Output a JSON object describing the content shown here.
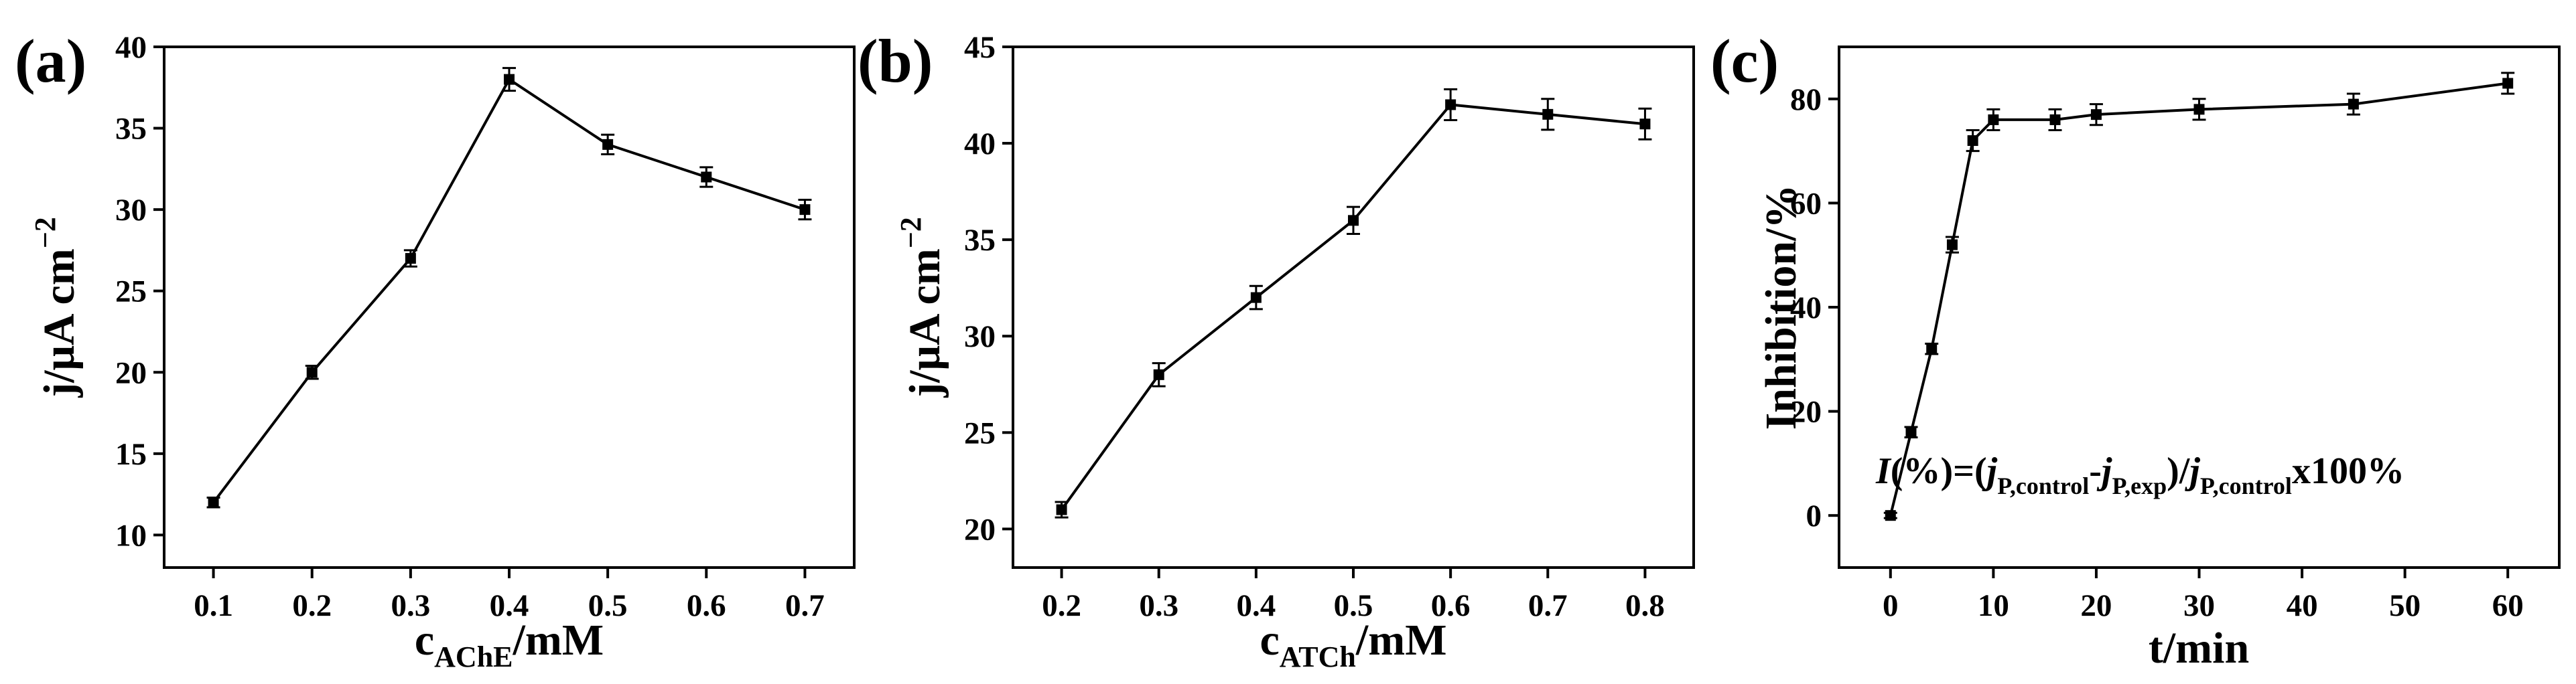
{
  "chart_data": [
    {
      "type": "line",
      "panel_label": "(a)",
      "xlabel_main": "c",
      "xlabel_sub": "AChE",
      "xlabel_tail": "/mM",
      "ylabel": "j/μA cm",
      "ylabel_sup": "−2",
      "xlim": [
        0.05,
        0.75
      ],
      "ylim": [
        8,
        40
      ],
      "xticks": [
        0.1,
        0.2,
        0.3,
        0.4,
        0.5,
        0.6,
        0.7
      ],
      "xtick_labels": [
        "0.1",
        "0.2",
        "0.3",
        "0.4",
        "0.5",
        "0.6",
        "0.7"
      ],
      "yticks": [
        10,
        15,
        20,
        25,
        30,
        35,
        40
      ],
      "ytick_labels": [
        "10",
        "15",
        "20",
        "25",
        "30",
        "35",
        "40"
      ],
      "series": [
        {
          "x": [
            0.1,
            0.2,
            0.3,
            0.4,
            0.5,
            0.6,
            0.7
          ],
          "y": [
            12,
            20,
            27,
            38,
            34,
            32,
            30
          ],
          "error": [
            0.3,
            0.4,
            0.5,
            0.7,
            0.6,
            0.6,
            0.6
          ]
        }
      ]
    },
    {
      "type": "line",
      "panel_label": "(b)",
      "xlabel_main": "c",
      "xlabel_sub": "ATCh",
      "xlabel_tail": "/mM",
      "ylabel": "j/μA cm",
      "ylabel_sup": "−2",
      "xlim": [
        0.15,
        0.85
      ],
      "ylim": [
        18,
        45
      ],
      "xticks": [
        0.2,
        0.3,
        0.4,
        0.5,
        0.6,
        0.7,
        0.8
      ],
      "xtick_labels": [
        "0.2",
        "0.3",
        "0.4",
        "0.5",
        "0.6",
        "0.7",
        "0.8"
      ],
      "yticks": [
        20,
        25,
        30,
        35,
        40,
        45
      ],
      "ytick_labels": [
        "20",
        "25",
        "30",
        "35",
        "40",
        "45"
      ],
      "series": [
        {
          "x": [
            0.2,
            0.3,
            0.4,
            0.5,
            0.6,
            0.7,
            0.8
          ],
          "y": [
            21,
            28,
            32,
            36,
            42,
            41.5,
            41
          ],
          "error": [
            0.4,
            0.6,
            0.6,
            0.7,
            0.8,
            0.8,
            0.8
          ]
        }
      ]
    },
    {
      "type": "line",
      "panel_label": "(c)",
      "xlabel": "t/min",
      "ylabel": "Inhibition/%",
      "xlim": [
        -5,
        65
      ],
      "ylim": [
        -10,
        90
      ],
      "xticks": [
        0,
        10,
        20,
        30,
        40,
        50,
        60
      ],
      "xtick_labels": [
        "0",
        "10",
        "20",
        "30",
        "40",
        "50",
        "60"
      ],
      "yticks": [
        0,
        20,
        40,
        60,
        80
      ],
      "ytick_labels": [
        "0",
        "20",
        "40",
        "60",
        "80"
      ],
      "series": [
        {
          "x": [
            0,
            2,
            4,
            6,
            8,
            10,
            16,
            20,
            30,
            45,
            60
          ],
          "y": [
            0,
            16,
            32,
            52,
            72,
            76,
            76,
            77,
            78,
            79,
            83
          ],
          "error": [
            0.5,
            1,
            1,
            1.5,
            2,
            2,
            2,
            2,
            2,
            2,
            2
          ]
        }
      ],
      "annotation": {
        "parts": [
          "I",
          "(%)=(",
          "j",
          "P,control",
          "-",
          "j",
          "P,exp",
          ")/",
          "j",
          "P,control",
          "x100%"
        ]
      }
    }
  ]
}
